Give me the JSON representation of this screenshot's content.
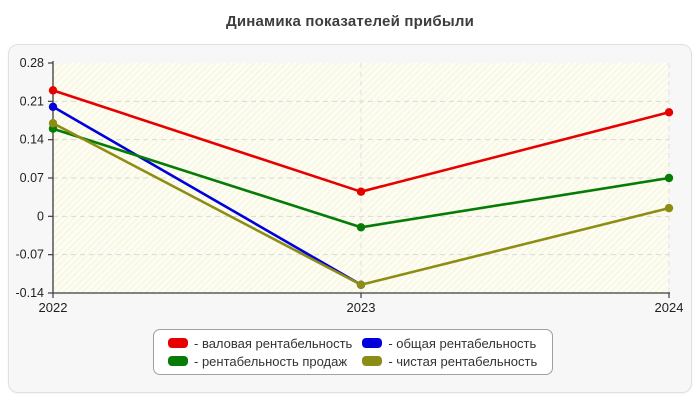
{
  "title": "Динамика показателей прибыли",
  "chart_data": {
    "type": "line",
    "x": [
      "2022",
      "2023",
      "2024"
    ],
    "series": [
      {
        "name": "валовая рентабельность",
        "color": "#e80000",
        "values": [
          0.23,
          0.045,
          0.19
        ]
      },
      {
        "name": "общая рентабельность",
        "color": "#0000dd",
        "values": [
          0.2,
          -0.125,
          null
        ]
      },
      {
        "name": "рентабельность продаж",
        "color": "#067c06",
        "values": [
          0.16,
          -0.02,
          0.07
        ]
      },
      {
        "name": "чистая рентабельность",
        "color": "#8d8d16",
        "values": [
          0.17,
          -0.125,
          0.015
        ]
      }
    ],
    "ylim": [
      -0.14,
      0.28
    ],
    "ytick_labels": [
      "0.28",
      "0.21",
      "0.14",
      "0.07",
      "0",
      "-0.07",
      "-0.14"
    ],
    "grid": "dashed",
    "plot_background": "#fcfcef",
    "legend_position": "bottom"
  },
  "legend": {
    "items": [
      {
        "label": "- валовая рентабельность",
        "color": "#e80000"
      },
      {
        "label": "- общая рентабельность",
        "color": "#0000dd"
      },
      {
        "label": "- рентабельность продаж",
        "color": "#067c06"
      },
      {
        "label": "- чистая рентабельность",
        "color": "#8d8d16"
      }
    ]
  }
}
